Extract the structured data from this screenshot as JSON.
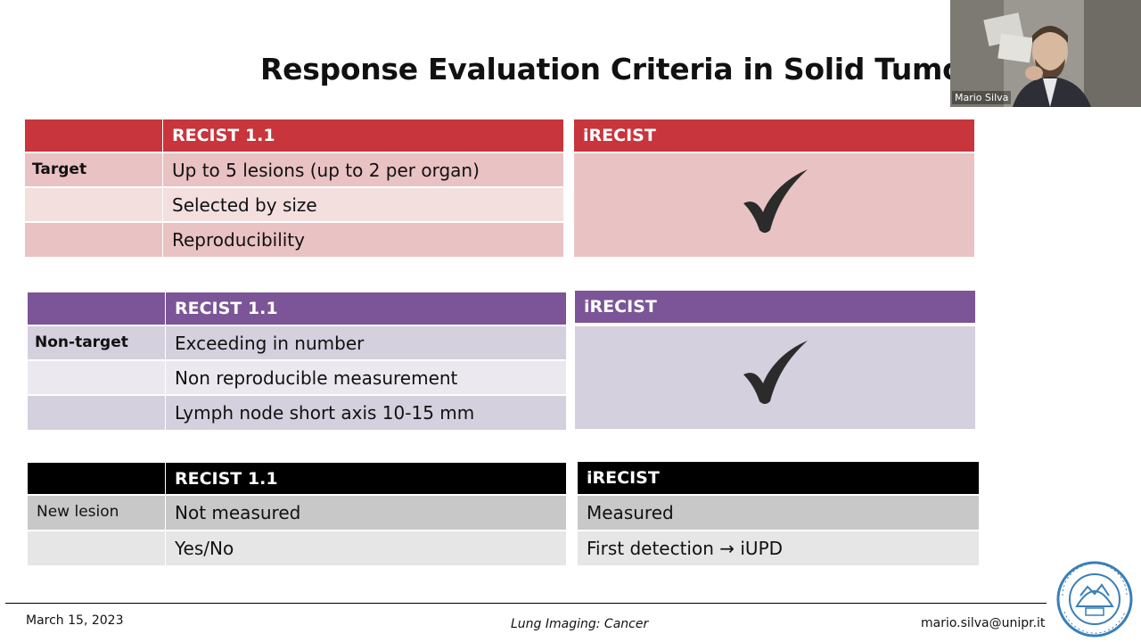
{
  "slide": {
    "title": "Response Evaluation Criteria in Solid Tumors - RE"
  },
  "tables": {
    "target": {
      "left_header": "RECIST 1.1",
      "right_header": "iRECIST",
      "row_label": "Target",
      "items": [
        "Up to 5 lesions (up to 2 per organ)",
        "Selected by size",
        "Reproducibility"
      ],
      "right_mark": "check-icon"
    },
    "nontarget": {
      "left_header": "RECIST 1.1",
      "right_header": "iRECIST",
      "row_label": "Non-target",
      "items": [
        "Exceeding in number",
        "Non reproducible measurement",
        "Lymph node short axis 10-15 mm"
      ],
      "right_mark": "check-icon"
    },
    "newlesion": {
      "left_header": "RECIST 1.1",
      "right_header": "iRECIST",
      "row_label": "New lesion",
      "left_items": [
        "Not measured",
        "Yes/No"
      ],
      "right_items": [
        "Measured",
        "First detection → iUPD"
      ]
    }
  },
  "colors": {
    "red_header": "#c8353c",
    "red_row_dark": "#e9c2c4",
    "red_row_light": "#f4dfdf",
    "purple_header": "#7b5597",
    "purple_row_dark": "#d4d0dd",
    "purple_row_light": "#ebe9ef",
    "black_header": "#000000",
    "gray_row_dark": "#c8c8c8",
    "gray_row_light": "#e6e6e6"
  },
  "video": {
    "participant_name": "Mario Silva"
  },
  "footer": {
    "date": "March 15, 2023",
    "course": "Lung Imaging: Cancer",
    "email": "mario.silva@unipr.it"
  },
  "logo": {
    "text": "ALMA UNIVERSITAS STUDIORUM PARMENSIS"
  }
}
